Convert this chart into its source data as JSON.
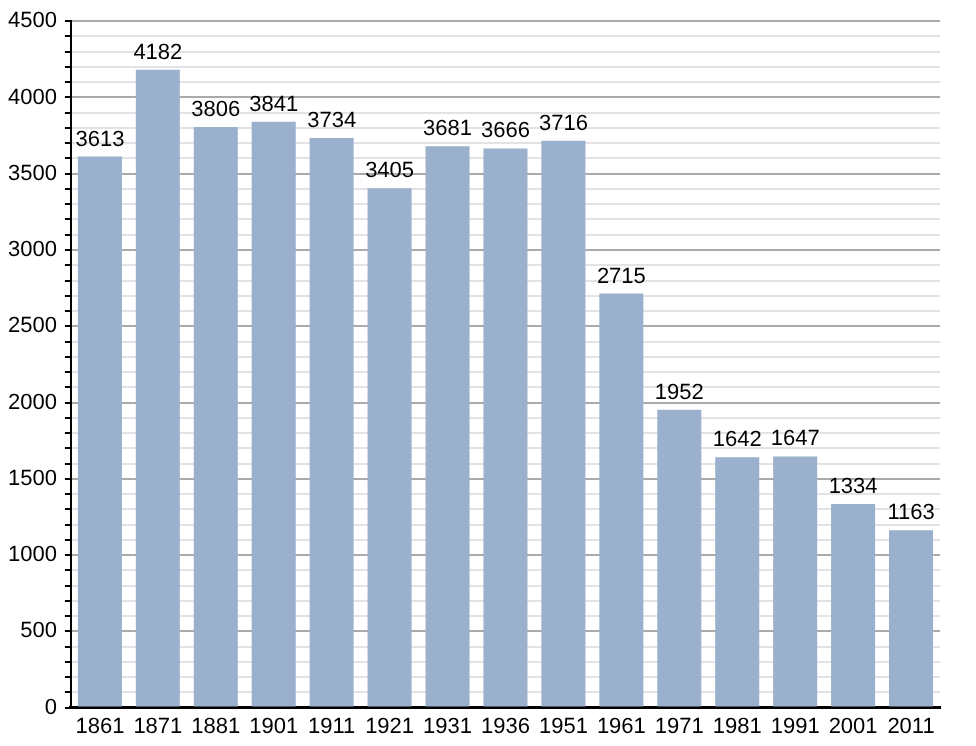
{
  "chart_data": {
    "type": "bar",
    "categories": [
      "1861",
      "1871",
      "1881",
      "1901",
      "1911",
      "1921",
      "1931",
      "1936",
      "1951",
      "1961",
      "1971",
      "1981",
      "1991",
      "2001",
      "2011"
    ],
    "values": [
      3613,
      4182,
      3806,
      3841,
      3734,
      3405,
      3681,
      3666,
      3716,
      2715,
      1952,
      1642,
      1647,
      1334,
      1163
    ],
    "color": "#9ab0cc",
    "ylim": [
      0,
      4500
    ],
    "yticks": [
      0,
      {
        "value": 100,
        "label": null
      },
      {
        "value": 200,
        "label": null
      },
      {
        "value": 300,
        "label": null
      },
      {
        "value": 400,
        "label": null
      },
      500,
      {
        "value": 600,
        "label": null
      },
      {
        "value": 700,
        "label": null
      },
      {
        "value": 800,
        "label": null
      },
      {
        "value": 900,
        "label": null
      },
      1000,
      {
        "value": 1100,
        "label": null
      },
      {
        "value": 1200,
        "label": null
      },
      {
        "value": 1300,
        "label": null
      },
      {
        "value": 1400,
        "label": null
      },
      1500,
      {
        "value": 1600,
        "label": null
      },
      {
        "value": 1700,
        "label": null
      },
      {
        "value": 1800,
        "label": null
      },
      {
        "value": 1900,
        "label": null
      },
      2000,
      {
        "value": 2100,
        "label": null
      },
      {
        "value": 2200,
        "label": null
      },
      {
        "value": 2300,
        "label": null
      },
      {
        "value": 2400,
        "label": null
      },
      2500,
      {
        "value": 2600,
        "label": null
      },
      {
        "value": 2700,
        "label": null
      },
      {
        "value": 2800,
        "label": null
      },
      {
        "value": 2900,
        "label": null
      },
      3000,
      {
        "value": 3100,
        "label": null
      },
      {
        "value": 3200,
        "label": null
      },
      {
        "value": 3300,
        "label": null
      },
      {
        "value": 3400,
        "label": null
      },
      3500,
      {
        "value": 3600,
        "label": null
      },
      {
        "value": 3700,
        "label": null
      },
      {
        "value": 3800,
        "label": null
      },
      {
        "value": 3900,
        "label": null
      },
      4000,
      {
        "value": 4100,
        "label": null
      },
      {
        "value": 4200,
        "label": null
      },
      {
        "value": 4300,
        "label": null
      },
      {
        "value": 4400,
        "label": null
      },
      4500
    ],
    "grid": "y",
    "data_labels": true
  }
}
